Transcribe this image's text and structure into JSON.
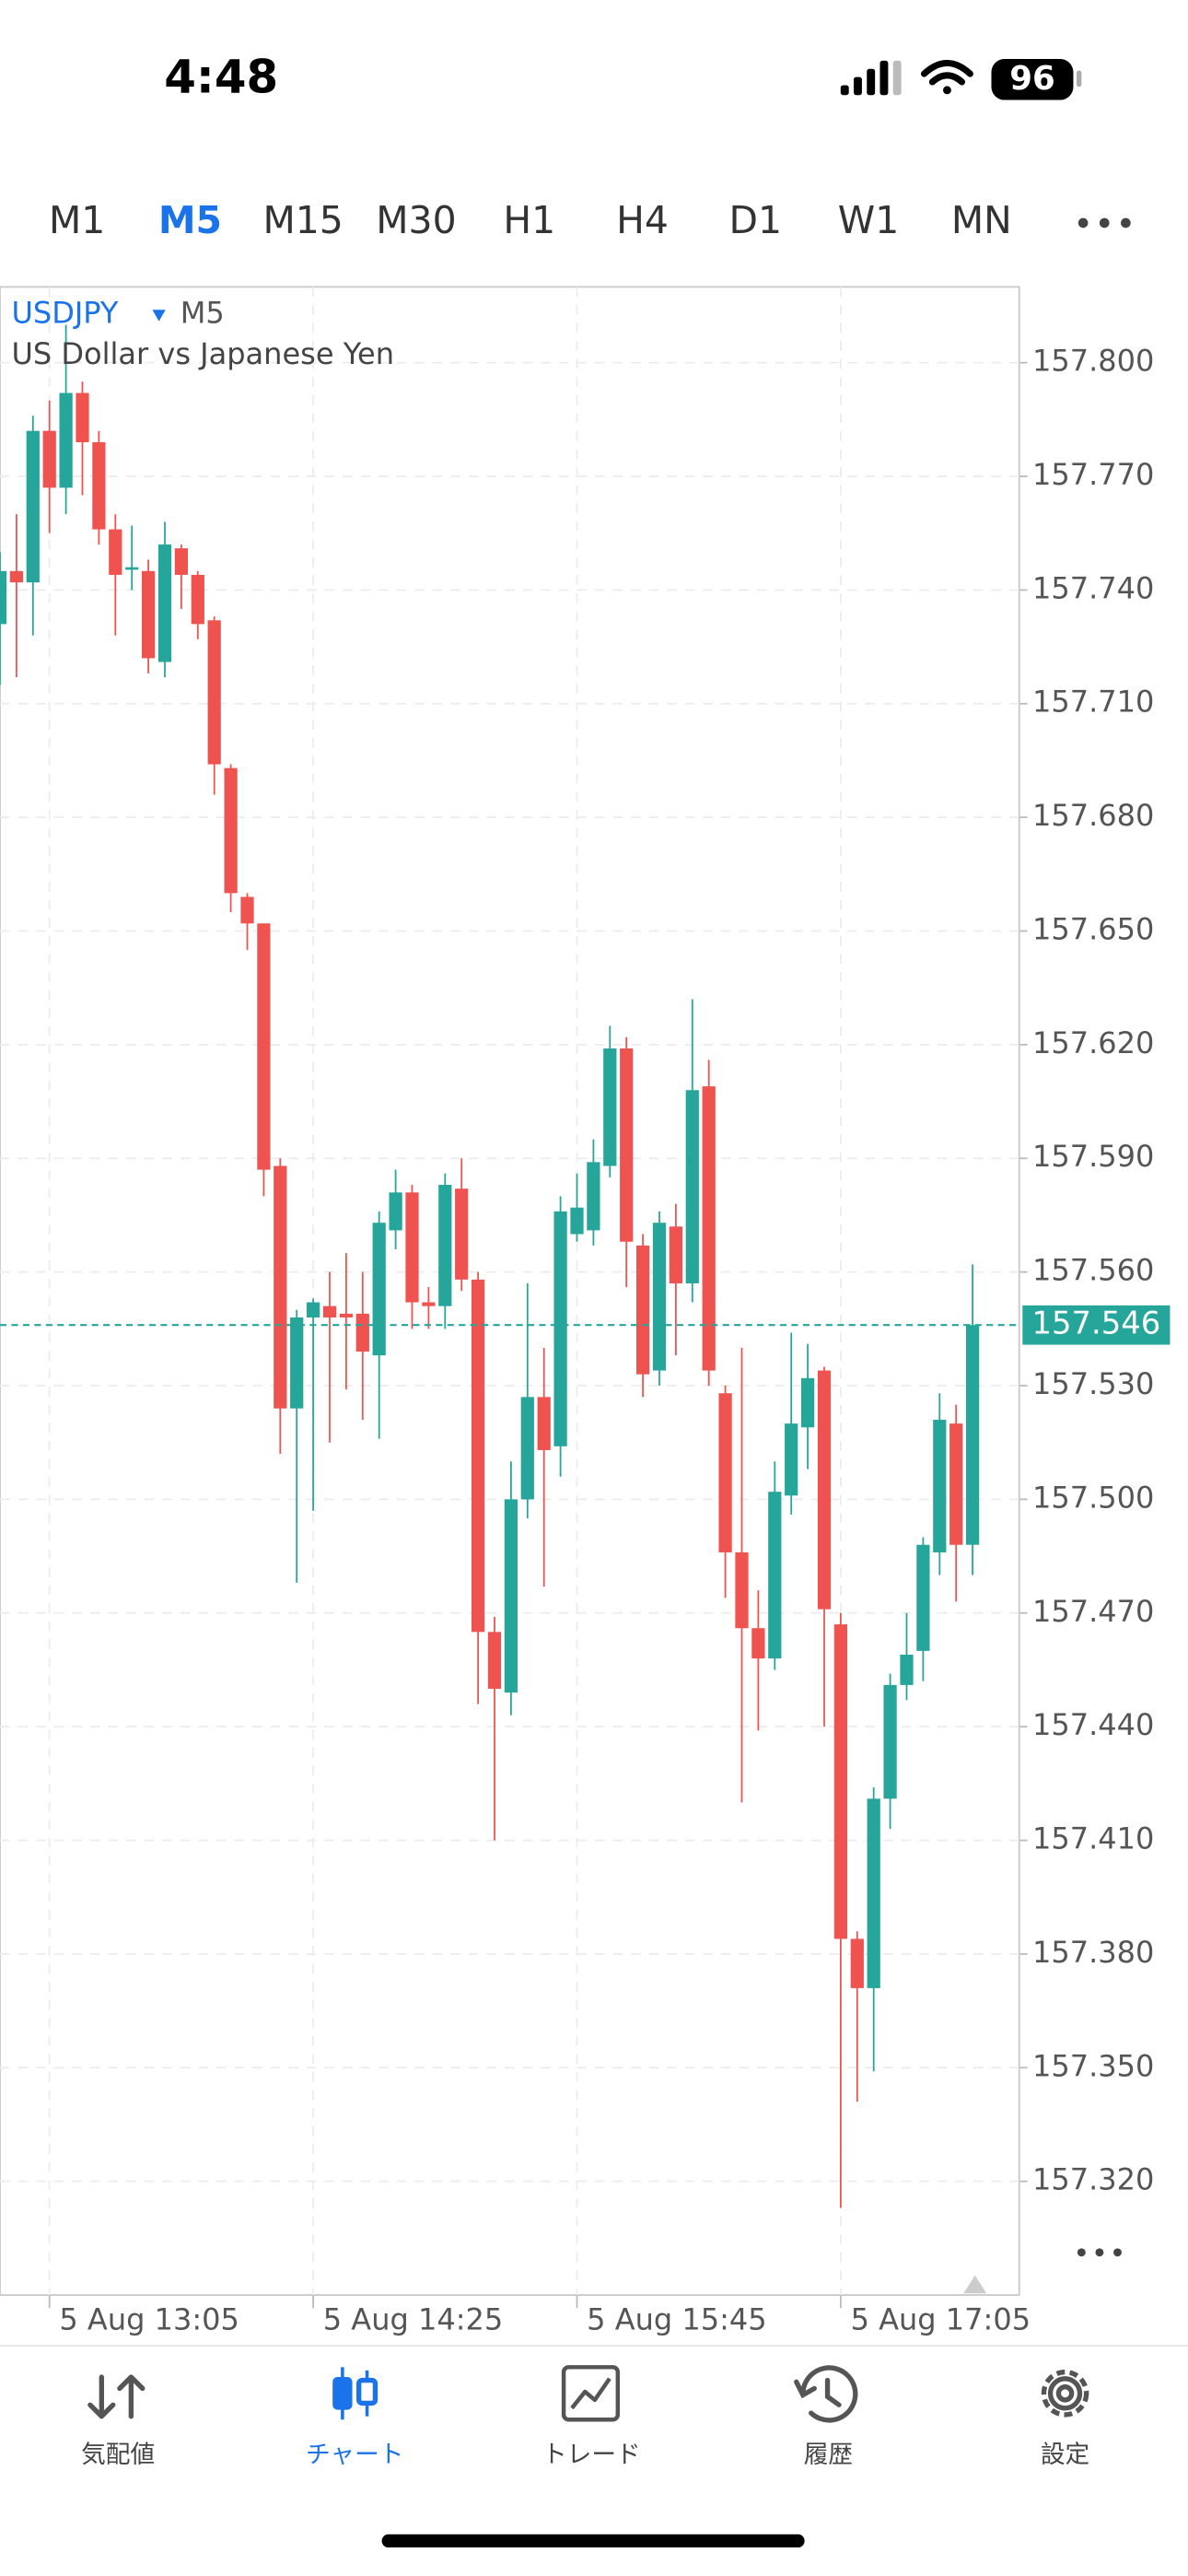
{
  "status_bar": {
    "time": "4:48",
    "battery": "96"
  },
  "timeframes": {
    "items": [
      "M1",
      "M5",
      "M15",
      "M30",
      "H1",
      "H4",
      "D1",
      "W1",
      "MN"
    ],
    "active": 1
  },
  "chart_data": {
    "type": "candlestick",
    "symbol": "USDJPY",
    "timeframe": "M5",
    "subtitle": "US Dollar vs Japanese Yen",
    "categories": [
      null,
      null,
      null,
      "5 Aug 13:05",
      null,
      null,
      null,
      null,
      null,
      null,
      null,
      null,
      null,
      null,
      null,
      null,
      null,
      null,
      null,
      "5 Aug 14:25",
      null,
      null,
      null,
      null,
      null,
      null,
      null,
      null,
      null,
      null,
      null,
      null,
      null,
      null,
      null,
      "5 Aug 15:45",
      null,
      null,
      null,
      null,
      null,
      null,
      null,
      null,
      null,
      null,
      null,
      null,
      null,
      null,
      null,
      "5 Aug 17:05",
      null,
      null,
      null,
      null,
      null,
      null,
      null,
      null
    ],
    "open": [
      157.731,
      157.745,
      157.742,
      157.782,
      157.767,
      157.792,
      157.779,
      157.756,
      157.746,
      157.745,
      157.721,
      157.751,
      157.744,
      157.732,
      157.693,
      157.659,
      157.652,
      157.588,
      157.524,
      157.548,
      157.551,
      157.549,
      157.549,
      157.538,
      157.571,
      157.581,
      157.552,
      157.551,
      157.582,
      157.558,
      157.465,
      157.449,
      157.5,
      157.527,
      157.514,
      157.57,
      157.571,
      157.588,
      157.619,
      157.567,
      157.534,
      157.572,
      157.557,
      157.609,
      157.528,
      157.486,
      157.466,
      157.458,
      157.501,
      157.519,
      157.534,
      157.467,
      157.384,
      157.371,
      157.421,
      157.451,
      157.46,
      157.486,
      157.52,
      157.488
    ],
    "high": [
      157.75,
      157.76,
      157.786,
      157.79,
      157.81,
      157.795,
      157.782,
      157.76,
      157.757,
      157.748,
      157.758,
      157.752,
      157.745,
      157.733,
      157.694,
      157.66,
      157.652,
      157.59,
      157.55,
      157.553,
      157.56,
      157.565,
      157.56,
      157.576,
      157.587,
      157.583,
      157.556,
      157.586,
      157.59,
      157.56,
      157.469,
      157.51,
      157.557,
      157.54,
      157.58,
      157.586,
      157.595,
      157.625,
      157.622,
      157.57,
      157.576,
      157.578,
      157.632,
      157.616,
      157.53,
      157.54,
      157.476,
      157.51,
      157.544,
      157.541,
      157.535,
      157.47,
      157.386,
      157.424,
      157.454,
      157.47,
      157.49,
      157.528,
      157.525,
      157.562
    ],
    "low": [
      157.715,
      157.717,
      157.728,
      157.755,
      157.76,
      157.765,
      157.752,
      157.728,
      157.74,
      157.718,
      157.717,
      157.735,
      157.727,
      157.686,
      157.655,
      157.645,
      157.58,
      157.512,
      157.478,
      157.497,
      157.515,
      157.529,
      157.521,
      157.516,
      157.566,
      157.545,
      157.545,
      157.545,
      157.555,
      157.446,
      157.41,
      157.443,
      157.495,
      157.477,
      157.506,
      157.568,
      157.567,
      157.585,
      157.556,
      157.527,
      157.53,
      157.538,
      157.552,
      157.53,
      157.474,
      157.42,
      157.439,
      157.455,
      157.496,
      157.508,
      157.44,
      157.313,
      157.341,
      157.349,
      157.413,
      157.447,
      157.452,
      157.48,
      157.473,
      157.48
    ],
    "close": [
      157.745,
      157.742,
      157.782,
      157.767,
      157.792,
      157.779,
      157.756,
      157.744,
      157.746,
      157.722,
      157.752,
      157.744,
      157.731,
      157.694,
      157.66,
      157.652,
      157.587,
      157.524,
      157.548,
      157.552,
      157.548,
      157.548,
      157.539,
      157.573,
      157.581,
      157.552,
      157.551,
      157.583,
      157.558,
      157.465,
      157.45,
      157.5,
      157.527,
      157.513,
      157.576,
      157.577,
      157.589,
      157.619,
      157.568,
      157.533,
      157.573,
      157.557,
      157.608,
      157.534,
      157.486,
      157.466,
      157.458,
      157.502,
      157.52,
      157.532,
      157.471,
      157.384,
      157.371,
      157.421,
      157.451,
      157.459,
      157.488,
      157.521,
      157.488,
      157.546
    ],
    "up_color": "#26a69a",
    "down_color": "#ef5350",
    "last_price": 157.546,
    "last_price_color": "#26a69a",
    "ylim": [
      157.29,
      157.82
    ],
    "yticks": [
      {
        "value": 157.8,
        "label": "157.800"
      },
      {
        "value": 157.77,
        "label": "157.770"
      },
      {
        "value": 157.74,
        "label": "157.740"
      },
      {
        "value": 157.71,
        "label": "157.710"
      },
      {
        "value": 157.68,
        "label": "157.680"
      },
      {
        "value": 157.65,
        "label": "157.650"
      },
      {
        "value": 157.62,
        "label": "157.620"
      },
      {
        "value": 157.59,
        "label": "157.590"
      },
      {
        "value": 157.56,
        "label": "157.560"
      },
      {
        "value": 157.53,
        "label": "157.530"
      },
      {
        "value": 157.5,
        "label": "157.500"
      },
      {
        "value": 157.47,
        "label": "157.470"
      },
      {
        "value": 157.44,
        "label": "157.440"
      },
      {
        "value": 157.41,
        "label": "157.410"
      },
      {
        "value": 157.38,
        "label": "157.380"
      },
      {
        "value": 157.35,
        "label": "157.350"
      },
      {
        "value": 157.32,
        "label": "157.320"
      }
    ],
    "grid": true
  },
  "nav": {
    "items": [
      "気配値",
      "チャート",
      "トレード",
      "履歴",
      "設定"
    ],
    "active": 1
  }
}
